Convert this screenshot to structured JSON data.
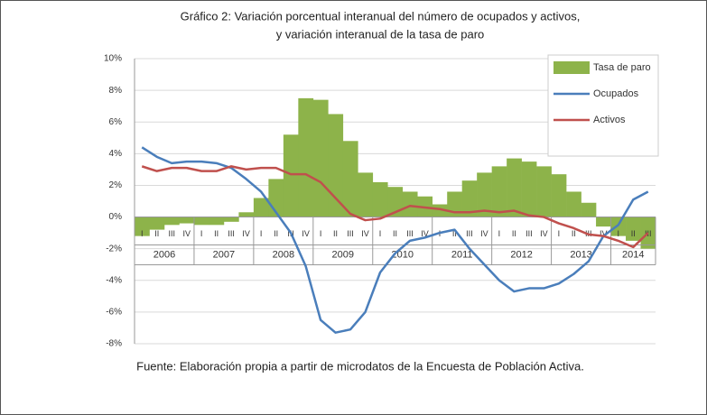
{
  "chart_data": {
    "type": "bar_line",
    "title": [
      "Gráfico 2: Variación porcentual interanual del número de ocupados y activos,",
      "y variación interanual de la tasa de paro"
    ],
    "source": "Fuente: Elaboración propia a partir de microdatos de la Encuesta de Población Activa.",
    "groups": [
      {
        "label": "2006",
        "categories": [
          "I",
          "II",
          "III",
          "IV"
        ]
      },
      {
        "label": "2007",
        "categories": [
          "I",
          "II",
          "III",
          "IV"
        ]
      },
      {
        "label": "2008",
        "categories": [
          "I",
          "II",
          "III",
          "IV"
        ]
      },
      {
        "label": "2009",
        "categories": [
          "I",
          "II",
          "III",
          "IV"
        ]
      },
      {
        "label": "2010",
        "categories": [
          "I",
          "II",
          "III",
          "IV"
        ]
      },
      {
        "label": "2011",
        "categories": [
          "I",
          "II",
          "III",
          "IV"
        ]
      },
      {
        "label": "2012",
        "categories": [
          "I",
          "II",
          "III",
          "IV"
        ]
      },
      {
        "label": "2013",
        "categories": [
          "I",
          "II",
          "III",
          "IV"
        ]
      },
      {
        "label": "2014",
        "categories": [
          "I",
          "II",
          "III"
        ]
      }
    ],
    "series": [
      {
        "name": "Tasa de paro",
        "kind": "bar",
        "color": "#8db34a",
        "values": [
          -1.2,
          -0.8,
          -0.5,
          -0.4,
          -0.5,
          -0.5,
          -0.3,
          0.3,
          1.2,
          2.4,
          5.2,
          7.5,
          7.4,
          6.5,
          4.8,
          2.8,
          2.2,
          1.9,
          1.6,
          1.3,
          0.8,
          1.6,
          2.3,
          2.8,
          3.2,
          3.7,
          3.5,
          3.2,
          2.7,
          1.6,
          0.9,
          -0.6,
          -1.2,
          -1.5,
          -2.0
        ]
      },
      {
        "name": "Ocupados",
        "kind": "line",
        "color": "#4a7ebb",
        "values": [
          4.4,
          3.8,
          3.4,
          3.5,
          3.5,
          3.4,
          3.1,
          2.4,
          1.6,
          0.3,
          -1.0,
          -3.1,
          -6.5,
          -7.3,
          -7.1,
          -6.0,
          -3.5,
          -2.3,
          -1.5,
          -1.3,
          -1.0,
          -0.8,
          -2.0,
          -3.0,
          -4.0,
          -4.7,
          -4.5,
          -4.5,
          -4.2,
          -3.6,
          -2.8,
          -1.2,
          -0.5,
          1.1,
          1.6
        ]
      },
      {
        "name": "Activos",
        "kind": "line",
        "color": "#c0504d",
        "values": [
          3.2,
          2.9,
          3.1,
          3.1,
          2.9,
          2.9,
          3.2,
          3.0,
          3.1,
          3.1,
          2.7,
          2.7,
          2.2,
          1.2,
          0.2,
          -0.2,
          -0.1,
          0.3,
          0.7,
          0.6,
          0.5,
          0.3,
          0.3,
          0.4,
          0.3,
          0.4,
          0.1,
          0.0,
          -0.4,
          -0.7,
          -1.1,
          -1.2,
          -1.5,
          -1.9,
          -1.0
        ]
      }
    ],
    "ylim": [
      -8,
      10
    ],
    "yticks": [
      {
        "value": -8,
        "label": "-8%"
      },
      {
        "value": -6,
        "label": "-6%"
      },
      {
        "value": -4,
        "label": "-4%"
      },
      {
        "value": -2,
        "label": "-2%"
      },
      {
        "value": 0,
        "label": "0%"
      },
      {
        "value": 2,
        "label": "2%"
      },
      {
        "value": 4,
        "label": "4%"
      },
      {
        "value": 6,
        "label": "6%"
      },
      {
        "value": 8,
        "label": "8%"
      },
      {
        "value": 10,
        "label": "10%"
      }
    ],
    "grid": true,
    "legend": "upper right"
  }
}
